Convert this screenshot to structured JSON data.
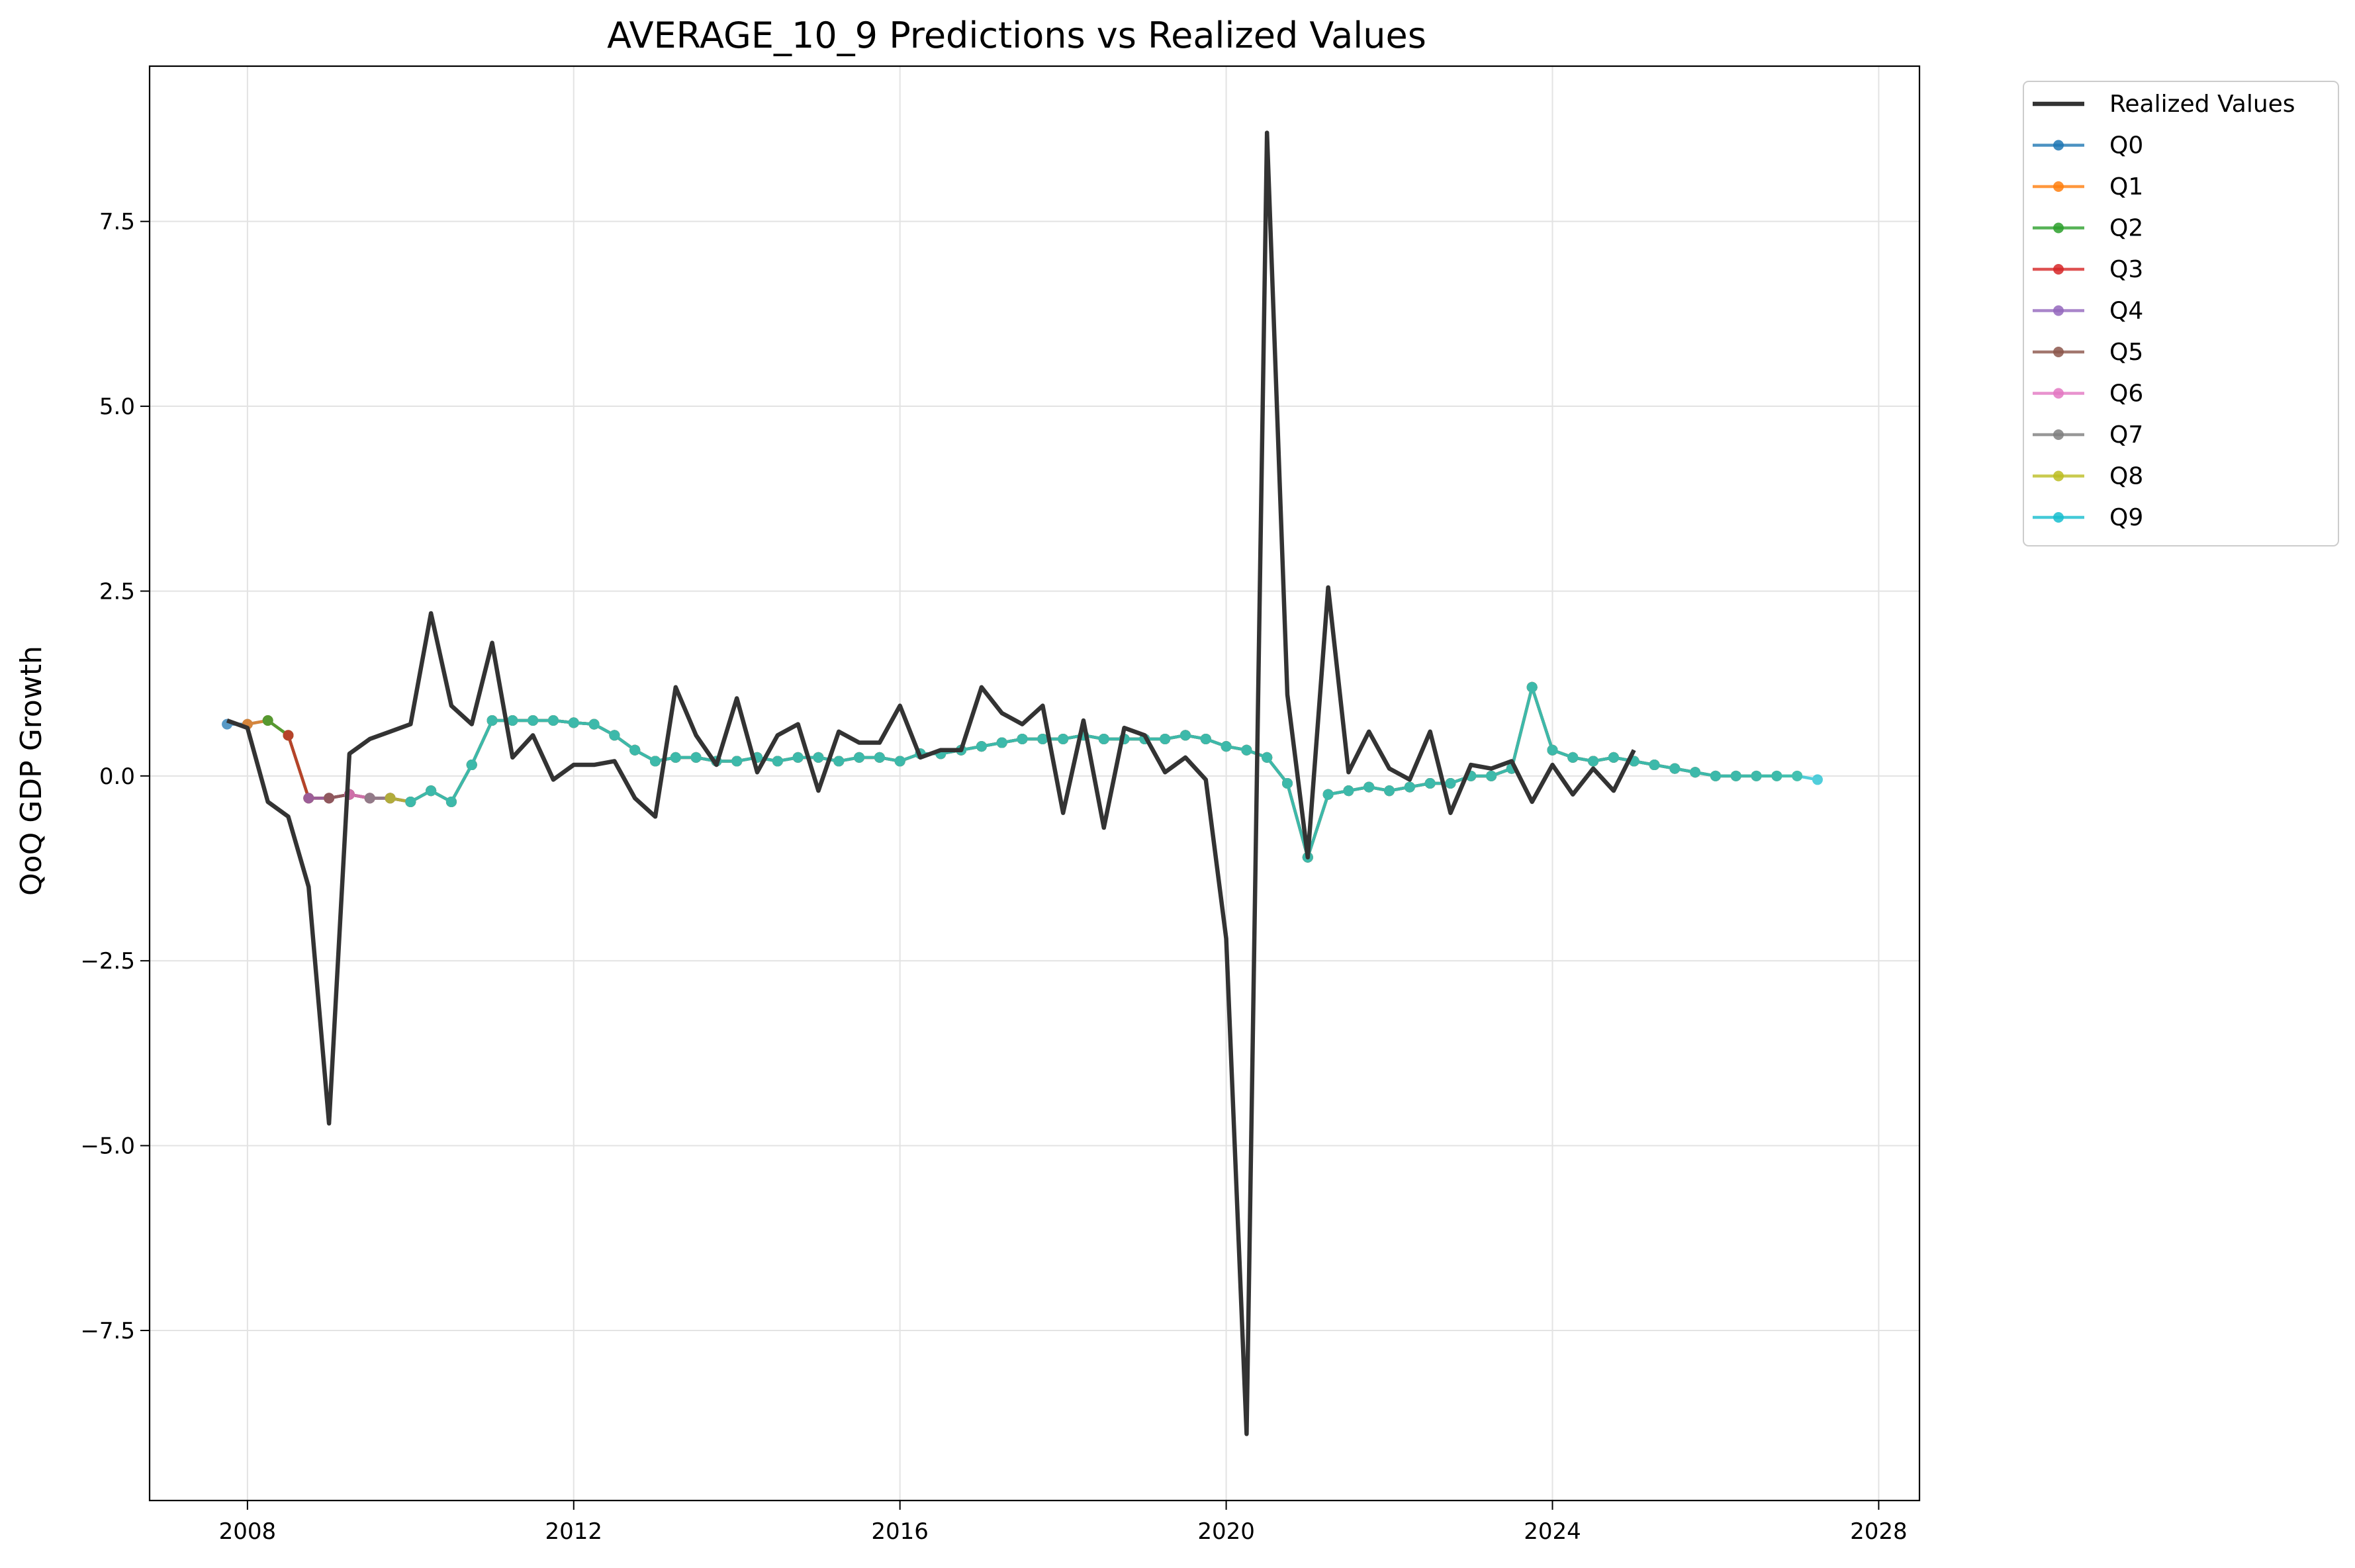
{
  "chart_data": {
    "type": "line",
    "title": "AVERAGE_10_9 Predictions vs Realized Values",
    "xlabel": "",
    "ylabel": "QoQ GDP Growth",
    "xlim": [
      2006.8,
      2028.5
    ],
    "ylim": [
      -9.8,
      9.6
    ],
    "xticks": [
      2008,
      2012,
      2016,
      2020,
      2024,
      2028
    ],
    "yticks": [
      -7.5,
      -5.0,
      -2.5,
      0.0,
      2.5,
      5.0,
      7.5
    ],
    "ytick_labels": [
      "−7.5",
      "−5.0",
      "−2.5",
      "0.0",
      "2.5",
      "5.0",
      "7.5"
    ],
    "grid": true,
    "legend_position": "outside-upper-right",
    "realized": {
      "name": "Realized Values",
      "color": "#333333",
      "x": [
        2007.75,
        2008.0,
        2008.25,
        2008.5,
        2008.75,
        2009.0,
        2009.25,
        2009.5,
        2009.75,
        2010.0,
        2010.25,
        2010.5,
        2010.75,
        2011.0,
        2011.25,
        2011.5,
        2011.75,
        2012.0,
        2012.25,
        2012.5,
        2012.75,
        2013.0,
        2013.25,
        2013.5,
        2013.75,
        2014.0,
        2014.25,
        2014.5,
        2014.75,
        2015.0,
        2015.25,
        2015.5,
        2015.75,
        2016.0,
        2016.25,
        2016.5,
        2016.75,
        2017.0,
        2017.25,
        2017.5,
        2017.75,
        2018.0,
        2018.25,
        2018.5,
        2018.75,
        2019.0,
        2019.25,
        2019.5,
        2019.75,
        2020.0,
        2020.25,
        2020.5,
        2020.75,
        2021.0,
        2021.25,
        2021.5,
        2021.75,
        2022.0,
        2022.25,
        2022.5,
        2022.75,
        2023.0,
        2023.25,
        2023.5,
        2023.75,
        2024.0,
        2024.25,
        2024.5,
        2024.75,
        2025.0
      ],
      "y": [
        0.75,
        0.65,
        -0.35,
        -0.55,
        -1.5,
        -4.7,
        0.3,
        0.5,
        0.6,
        0.7,
        2.2,
        0.95,
        0.7,
        1.8,
        0.25,
        0.55,
        -0.05,
        0.15,
        0.15,
        0.2,
        -0.3,
        -0.55,
        1.2,
        0.55,
        0.15,
        1.05,
        0.05,
        0.55,
        0.7,
        -0.2,
        0.6,
        0.45,
        0.45,
        0.95,
        0.25,
        0.35,
        0.35,
        1.2,
        0.85,
        0.7,
        0.95,
        -0.5,
        0.75,
        -0.7,
        0.65,
        0.55,
        0.05,
        0.25,
        -0.05,
        -2.2,
        -8.9,
        8.7,
        1.1,
        -1.1,
        2.55,
        0.05,
        0.6,
        0.1,
        -0.05,
        0.6,
        -0.5,
        0.15,
        0.1,
        0.2,
        -0.35,
        0.15,
        -0.25,
        0.1,
        -0.2,
        0.35
      ]
    },
    "series_colors": [
      "#1f77b4",
      "#ff7f0e",
      "#2ca02c",
      "#d62728",
      "#9467bd",
      "#8c564b",
      "#e377c2",
      "#7f7f7f",
      "#bcbd22",
      "#17becf"
    ],
    "series_names": [
      "Q0",
      "Q1",
      "Q2",
      "Q3",
      "Q4",
      "Q5",
      "Q6",
      "Q7",
      "Q8",
      "Q9"
    ],
    "forecast_pattern": {
      "start_origin": 2007.75,
      "origin_step": 0.25,
      "origins_per_series": 70,
      "path_values": [
        0.7,
        0.7,
        0.75,
        0.55,
        -0.3,
        -0.3,
        -0.25,
        -0.3,
        -0.3,
        -0.35,
        -0.2,
        -0.35,
        0.15,
        0.75,
        0.75,
        0.75,
        0.75,
        0.72,
        0.7,
        0.55,
        0.35,
        0.2,
        0.25,
        0.25,
        0.2,
        0.2,
        0.25,
        0.2,
        0.25,
        0.25,
        0.2,
        0.25,
        0.25,
        0.2,
        0.3,
        0.3,
        0.35,
        0.4,
        0.45,
        0.5,
        0.5,
        0.5,
        0.55,
        0.5,
        0.5,
        0.5,
        0.5,
        0.55,
        0.5,
        0.4,
        0.35,
        0.25,
        -0.1,
        -1.1,
        -0.25,
        -0.2,
        -0.15,
        -0.2,
        -0.15,
        -0.1,
        -0.1,
        0.0,
        0.0,
        0.1,
        1.2,
        0.35,
        0.25,
        0.2,
        0.25,
        0.2,
        0.15,
        0.1,
        0.05,
        0.0,
        0.0,
        0.0,
        0.0,
        0.0,
        -0.05,
        -0.05
      ]
    }
  },
  "legend": {
    "items": [
      {
        "label": "Realized Values"
      },
      {
        "label": "Q0"
      },
      {
        "label": "Q1"
      },
      {
        "label": "Q2"
      },
      {
        "label": "Q3"
      },
      {
        "label": "Q4"
      },
      {
        "label": "Q5"
      },
      {
        "label": "Q6"
      },
      {
        "label": "Q7"
      },
      {
        "label": "Q8"
      },
      {
        "label": "Q9"
      }
    ]
  }
}
